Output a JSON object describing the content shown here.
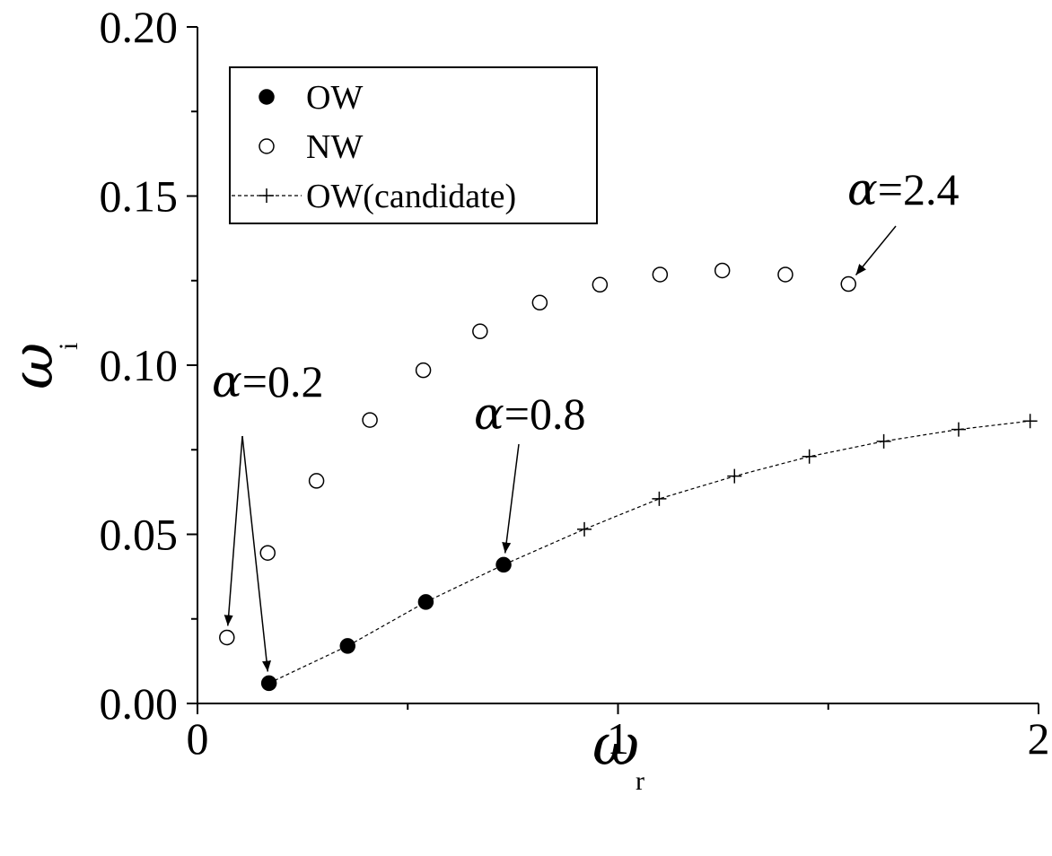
{
  "chart_data": {
    "type": "scatter",
    "xlabel": "ω",
    "xlabel_sub": "r",
    "ylabel": "ω",
    "ylabel_sub": "i",
    "xlim": [
      0,
      2
    ],
    "ylim": [
      0,
      0.2
    ],
    "x_ticks": [
      "0",
      "1",
      "2"
    ],
    "y_ticks": [
      "0.00",
      "0.05",
      "0.10",
      "0.15",
      "0.20"
    ],
    "legend_position": "top-left",
    "series": [
      {
        "name": "OW",
        "marker": "filled-circle",
        "x": [
          0.17,
          0.357,
          0.543,
          0.728
        ],
        "y": [
          0.006,
          0.017,
          0.03,
          0.041
        ]
      },
      {
        "name": "NW",
        "marker": "open-circle",
        "x": [
          0.07,
          0.167,
          0.283,
          0.41,
          0.537,
          0.672,
          0.814,
          0.957,
          1.1,
          1.248,
          1.398,
          1.548
        ],
        "y": [
          0.0195,
          0.0445,
          0.0658,
          0.0838,
          0.0985,
          0.11,
          0.1185,
          0.1238,
          0.1268,
          0.128,
          0.1268,
          0.124
        ]
      },
      {
        "name": "OW(candidate)",
        "marker": "plus",
        "line": "dashed",
        "x": [
          0.17,
          0.357,
          0.543,
          0.728,
          0.92,
          1.098,
          1.277,
          1.455,
          1.632,
          1.81,
          1.98
        ],
        "y": [
          0.006,
          0.017,
          0.03,
          0.041,
          0.0515,
          0.0605,
          0.0672,
          0.073,
          0.0775,
          0.081,
          0.0835
        ]
      }
    ],
    "annotations": [
      {
        "alpha": "α",
        "value": "=0.2",
        "arrows_to": [
          [
            0.07,
            0.0195
          ],
          [
            0.17,
            0.006
          ]
        ]
      },
      {
        "alpha": "α",
        "value": "=0.8",
        "arrows_to": [
          [
            0.728,
            0.041
          ]
        ]
      },
      {
        "alpha": "α",
        "value": "=2.4",
        "arrows_to": [
          [
            1.548,
            0.124
          ]
        ]
      }
    ]
  }
}
